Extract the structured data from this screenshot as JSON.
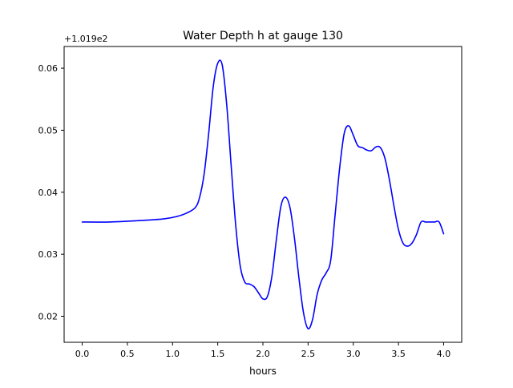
{
  "chart_data": {
    "type": "line",
    "title": "Water Depth h at gauge 130",
    "xlabel": "hours",
    "ylabel": "",
    "offset_label": "+1.019e2",
    "xlim": [
      -0.2,
      4.2
    ],
    "ylim": [
      0.0158,
      0.0635
    ],
    "x_ticks": [
      0.0,
      0.5,
      1.0,
      1.5,
      2.0,
      2.5,
      3.0,
      3.5,
      4.0
    ],
    "x_tick_labels": [
      "0.0",
      "0.5",
      "1.0",
      "1.5",
      "2.0",
      "2.5",
      "3.0",
      "3.5",
      "4.0"
    ],
    "y_ticks": [
      0.02,
      0.03,
      0.04,
      0.05,
      0.06
    ],
    "y_tick_labels": [
      "0.02",
      "0.03",
      "0.04",
      "0.05",
      "0.06"
    ],
    "grid": false,
    "legend": "none",
    "series": [
      {
        "color": "#0000ff",
        "x": [
          0.0,
          0.3,
          0.6,
          0.9,
          1.05,
          1.15,
          1.25,
          1.3,
          1.35,
          1.4,
          1.45,
          1.5,
          1.55,
          1.6,
          1.65,
          1.7,
          1.75,
          1.8,
          1.85,
          1.9,
          1.95,
          2.0,
          2.05,
          2.1,
          2.15,
          2.2,
          2.25,
          2.3,
          2.35,
          2.4,
          2.45,
          2.5,
          2.55,
          2.6,
          2.65,
          2.7,
          2.75,
          2.8,
          2.85,
          2.9,
          2.95,
          3.0,
          3.05,
          3.1,
          3.15,
          3.2,
          3.25,
          3.3,
          3.35,
          3.4,
          3.45,
          3.5,
          3.55,
          3.6,
          3.65,
          3.7,
          3.75,
          3.8,
          3.85,
          3.9,
          3.95,
          4.0
        ],
        "y": [
          0.0352,
          0.0352,
          0.0354,
          0.0357,
          0.0361,
          0.0366,
          0.0375,
          0.0392,
          0.043,
          0.0495,
          0.057,
          0.0608,
          0.0605,
          0.054,
          0.044,
          0.0345,
          0.028,
          0.0255,
          0.0252,
          0.0248,
          0.0238,
          0.0228,
          0.0232,
          0.0265,
          0.0325,
          0.0378,
          0.0392,
          0.0375,
          0.0325,
          0.026,
          0.0205,
          0.018,
          0.0195,
          0.0235,
          0.0258,
          0.027,
          0.029,
          0.0365,
          0.044,
          0.0495,
          0.0507,
          0.0492,
          0.0475,
          0.0472,
          0.0468,
          0.0467,
          0.0473,
          0.0472,
          0.0455,
          0.042,
          0.0378,
          0.034,
          0.0318,
          0.0313,
          0.0318,
          0.0332,
          0.0352,
          0.0352,
          0.0352,
          0.0352,
          0.0352,
          0.0333
        ]
      }
    ]
  }
}
